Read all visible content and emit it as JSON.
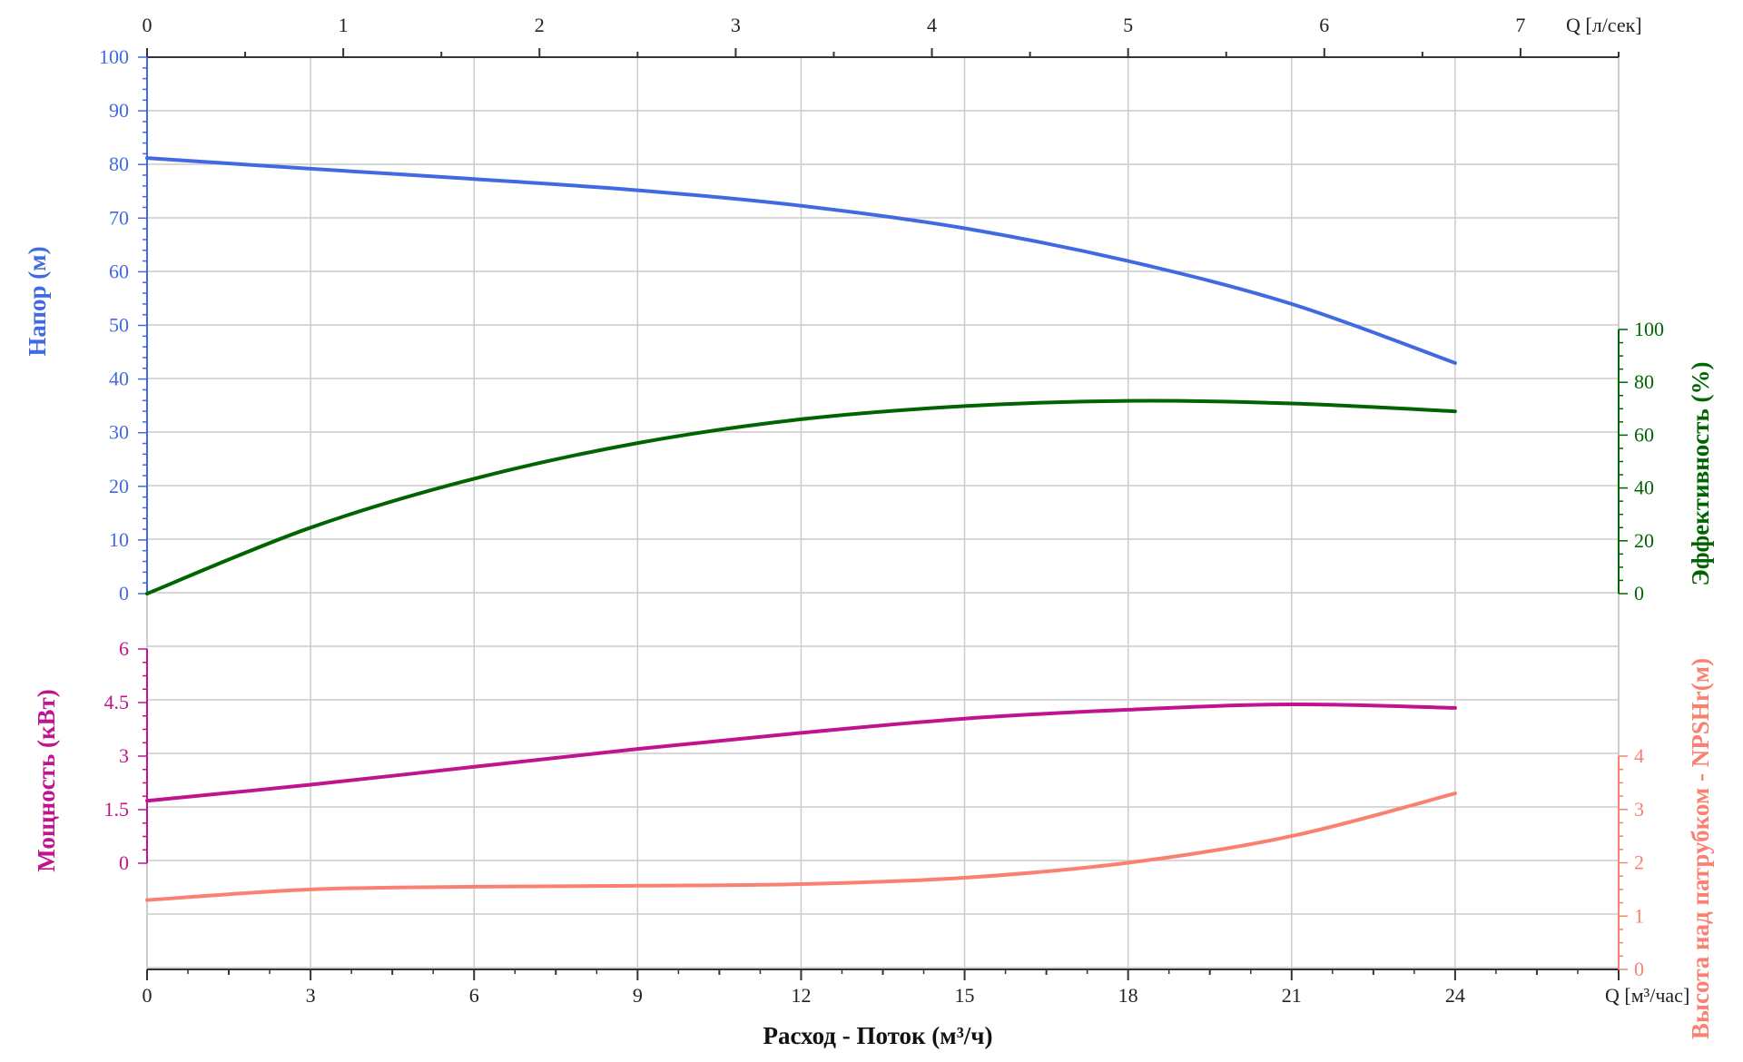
{
  "chart_data": {
    "type": "line",
    "title": "",
    "xlabel": "Расход - Поток (м³/ч)",
    "x_bottom_unit": "Q [м³/час]",
    "x_top_unit": "Q [л/сек]",
    "xlim": [
      0,
      27
    ],
    "x_ticks": [
      0,
      3,
      6,
      9,
      12,
      15,
      18,
      21,
      24
    ],
    "x2_ticks": [
      0,
      1,
      2,
      3,
      4,
      5,
      6,
      7
    ],
    "grid": true,
    "colors": {
      "head": "#4169e1",
      "efficiency": "#006400",
      "power": "#c0138e",
      "npsh": "#fa8072",
      "grid": "#cccccc",
      "axis": "#333333"
    },
    "axes": {
      "head": {
        "label": "Напор (м)",
        "ylim": [
          0,
          100
        ],
        "ticks": [
          0,
          10,
          20,
          30,
          40,
          50,
          60,
          70,
          80,
          90,
          100
        ],
        "side": "left"
      },
      "efficiency": {
        "label": "Эффективность (%)",
        "ylim": [
          0,
          100
        ],
        "ticks": [
          0,
          20,
          40,
          60,
          80,
          100
        ],
        "side": "right"
      },
      "power": {
        "label": "Мощность (кВт)",
        "ylim": [
          0,
          6
        ],
        "ticks": [
          "0",
          "1.5",
          "3",
          "4.5",
          "6"
        ],
        "side": "left"
      },
      "npsh": {
        "label": "Высота над патрубком - NPSHr(м)",
        "ylim": [
          0,
          4
        ],
        "ticks": [
          0,
          1,
          2,
          3,
          4
        ],
        "side": "right"
      }
    },
    "series": [
      {
        "name": "Напор (м)",
        "axis": "head",
        "x": [
          0,
          3,
          6,
          9,
          12,
          15,
          18,
          21,
          24
        ],
        "y": [
          81.2,
          79.2,
          77.3,
          75.2,
          72.3,
          68.1,
          62.0,
          54.0,
          43.0
        ]
      },
      {
        "name": "Эффективность (%)",
        "axis": "efficiency",
        "x": [
          0,
          3,
          6,
          9,
          12,
          15,
          18,
          21,
          24
        ],
        "y": [
          0,
          25,
          43.5,
          57,
          66,
          71,
          73,
          72,
          69
        ]
      },
      {
        "name": "Мощность (кВт)",
        "axis": "power",
        "x": [
          0,
          3,
          6,
          9,
          12,
          15,
          18,
          21,
          24
        ],
        "y": [
          1.75,
          2.2,
          2.7,
          3.2,
          3.65,
          4.05,
          4.3,
          4.45,
          4.35
        ]
      },
      {
        "name": "Высота над патрубком - NPSHr(м)",
        "axis": "npsh",
        "x": [
          0,
          3,
          6,
          9,
          12,
          15,
          18,
          21,
          24
        ],
        "y": [
          1.3,
          1.5,
          1.55,
          1.57,
          1.6,
          1.72,
          2.0,
          2.5,
          3.3
        ]
      }
    ]
  }
}
